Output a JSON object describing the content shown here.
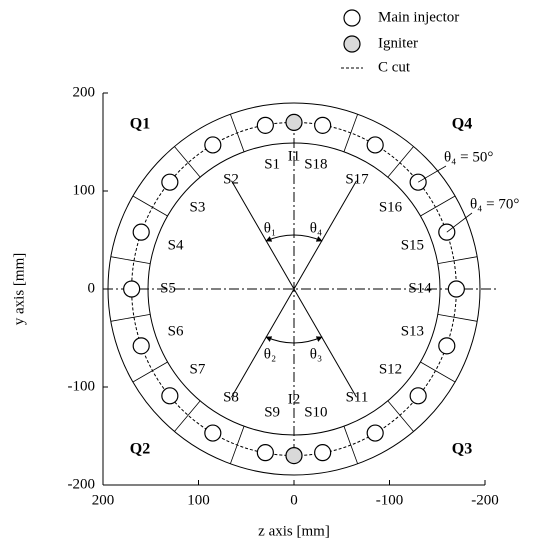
{
  "chart_data": {
    "type": "scatter",
    "xlabel": "z axis [mm]",
    "ylabel": "y axis [mm]",
    "xlim": [
      200,
      -200
    ],
    "ylim": [
      -200,
      200
    ],
    "xticks": [
      200,
      100,
      0,
      -100,
      -200
    ],
    "yticks": [
      200,
      100,
      0,
      -100,
      -200
    ],
    "series": [
      {
        "name": "Main injector",
        "color": "#ffffff",
        "x": [
          30,
          85,
          130,
          160,
          170,
          160,
          130,
          85,
          30,
          -30,
          -85,
          -130,
          -160,
          -170,
          -160,
          -130,
          -85,
          -30
        ],
        "values": [
          167,
          147,
          109,
          58,
          0,
          -58,
          -109,
          -147,
          -167,
          -167,
          -147,
          -109,
          -58,
          0,
          58,
          109,
          147,
          167
        ]
      },
      {
        "name": "Igniter",
        "color": "#d9d9d9",
        "x": [
          0,
          0
        ],
        "values": [
          170,
          -170
        ]
      },
      {
        "name": "C cut",
        "radius": 170
      }
    ],
    "sectors": [
      "S1",
      "S2",
      "S3",
      "S4",
      "S5",
      "S6",
      "S7",
      "S8",
      "S9",
      "S10",
      "S11",
      "S12",
      "S13",
      "S14",
      "S15",
      "S16",
      "S17",
      "S18"
    ],
    "quadrants": [
      "Q1",
      "Q2",
      "Q3",
      "Q4"
    ],
    "igniter_labels": [
      "I1",
      "I2"
    ],
    "angles": [
      "θ₁",
      "θ₂",
      "θ₃",
      "θ₄"
    ],
    "callouts": [
      "θ₄ = 50°",
      "θ₄ = 70°"
    ]
  }
}
